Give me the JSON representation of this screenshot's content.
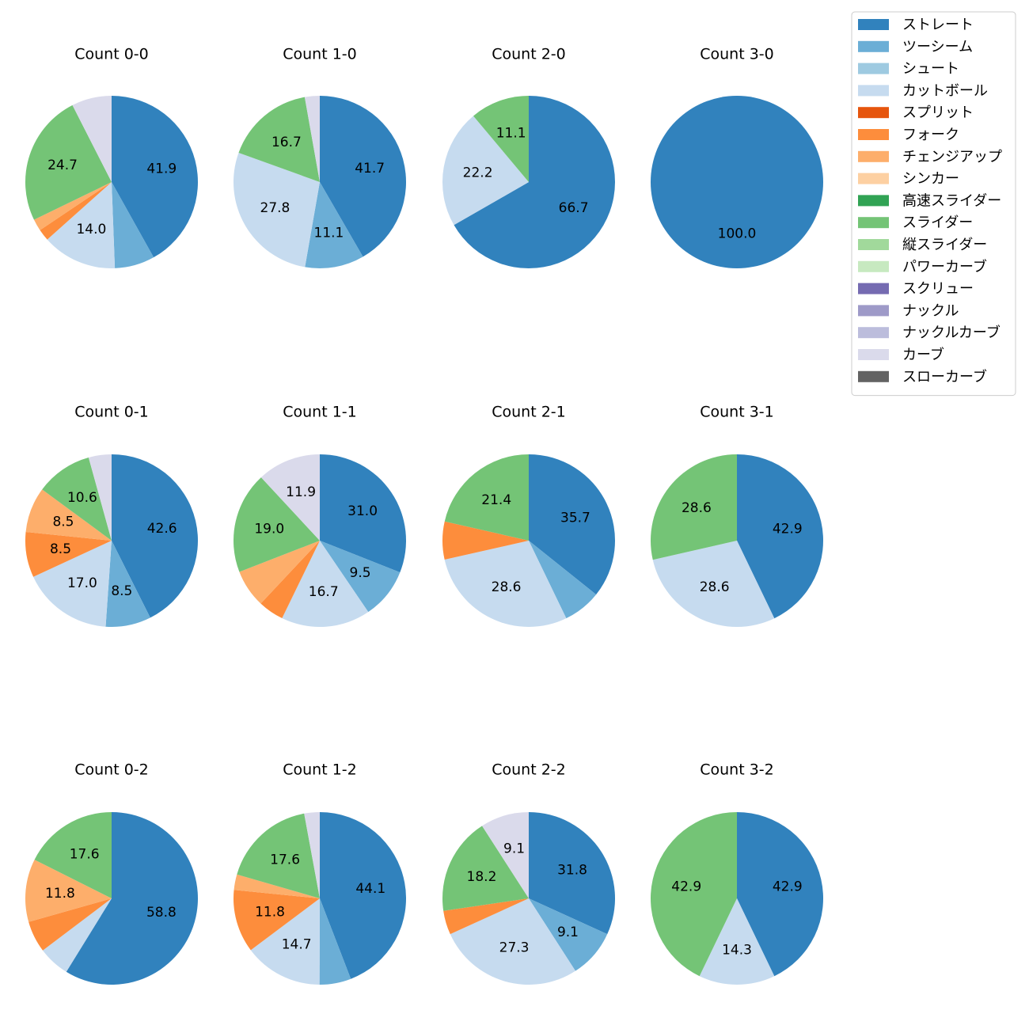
{
  "chart_data": {
    "type": "pie",
    "start": "top, clockwise",
    "legend_position": "top-right",
    "categories": [
      {
        "name": "ストレート",
        "color": "#3182bd"
      },
      {
        "name": "ツーシーム",
        "color": "#6baed6"
      },
      {
        "name": "シュート",
        "color": "#9ecae1"
      },
      {
        "name": "カットボール",
        "color": "#c6dbef"
      },
      {
        "name": "スプリット",
        "color": "#e6550d"
      },
      {
        "name": "フォーク",
        "color": "#fd8d3c"
      },
      {
        "name": "チェンジアップ",
        "color": "#fdae6b"
      },
      {
        "name": "シンカー",
        "color": "#fdd0a2"
      },
      {
        "name": "高速スライダー",
        "color": "#31a354"
      },
      {
        "name": "スライダー",
        "color": "#74c476"
      },
      {
        "name": "縦スライダー",
        "color": "#a1d99b"
      },
      {
        "name": "パワーカーブ",
        "color": "#c7e9c0"
      },
      {
        "name": "スクリュー",
        "color": "#756bb1"
      },
      {
        "name": "ナックル",
        "color": "#9e9ac8"
      },
      {
        "name": "ナックルカーブ",
        "color": "#bcbddc"
      },
      {
        "name": "カーブ",
        "color": "#dadaeb"
      },
      {
        "name": "スローカーブ",
        "color": "#636363"
      }
    ],
    "pies": [
      {
        "title": "Count 0-0",
        "slices": [
          {
            "category": "ストレート",
            "value": 41.9,
            "label": "41.9"
          },
          {
            "category": "ツーシーム",
            "value": 7.5,
            "label": ""
          },
          {
            "category": "カットボール",
            "value": 14.0,
            "label": "14.0"
          },
          {
            "category": "フォーク",
            "value": 2.2,
            "label": ""
          },
          {
            "category": "チェンジアップ",
            "value": 2.2,
            "label": ""
          },
          {
            "category": "スライダー",
            "value": 24.7,
            "label": "24.7"
          },
          {
            "category": "カーブ",
            "value": 7.5,
            "label": ""
          }
        ]
      },
      {
        "title": "Count 1-0",
        "slices": [
          {
            "category": "ストレート",
            "value": 41.7,
            "label": "41.7"
          },
          {
            "category": "ツーシーム",
            "value": 11.1,
            "label": "11.1"
          },
          {
            "category": "カットボール",
            "value": 27.8,
            "label": "27.8"
          },
          {
            "category": "スライダー",
            "value": 16.7,
            "label": "16.7"
          },
          {
            "category": "カーブ",
            "value": 2.8,
            "label": ""
          }
        ]
      },
      {
        "title": "Count 2-0",
        "slices": [
          {
            "category": "ストレート",
            "value": 66.7,
            "label": "66.7"
          },
          {
            "category": "カットボール",
            "value": 22.2,
            "label": "22.2"
          },
          {
            "category": "スライダー",
            "value": 11.1,
            "label": "11.1"
          }
        ]
      },
      {
        "title": "Count 3-0",
        "slices": [
          {
            "category": "ストレート",
            "value": 100.0,
            "label": "100.0"
          }
        ]
      },
      {
        "title": "Count 0-1",
        "slices": [
          {
            "category": "ストレート",
            "value": 42.6,
            "label": "42.6"
          },
          {
            "category": "ツーシーム",
            "value": 8.5,
            "label": "8.5"
          },
          {
            "category": "カットボール",
            "value": 17.0,
            "label": "17.0"
          },
          {
            "category": "フォーク",
            "value": 8.5,
            "label": "8.5"
          },
          {
            "category": "チェンジアップ",
            "value": 8.5,
            "label": "8.5"
          },
          {
            "category": "スライダー",
            "value": 10.6,
            "label": "10.6"
          },
          {
            "category": "カーブ",
            "value": 4.3,
            "label": ""
          }
        ]
      },
      {
        "title": "Count 1-1",
        "slices": [
          {
            "category": "ストレート",
            "value": 31.0,
            "label": "31.0"
          },
          {
            "category": "ツーシーム",
            "value": 9.5,
            "label": "9.5"
          },
          {
            "category": "カットボール",
            "value": 16.7,
            "label": "16.7"
          },
          {
            "category": "フォーク",
            "value": 4.8,
            "label": ""
          },
          {
            "category": "チェンジアップ",
            "value": 7.1,
            "label": ""
          },
          {
            "category": "スライダー",
            "value": 19.0,
            "label": "19.0"
          },
          {
            "category": "カーブ",
            "value": 11.9,
            "label": "11.9"
          }
        ]
      },
      {
        "title": "Count 2-1",
        "slices": [
          {
            "category": "ストレート",
            "value": 35.7,
            "label": "35.7"
          },
          {
            "category": "ツーシーム",
            "value": 7.1,
            "label": ""
          },
          {
            "category": "カットボール",
            "value": 28.6,
            "label": "28.6"
          },
          {
            "category": "フォーク",
            "value": 7.1,
            "label": ""
          },
          {
            "category": "スライダー",
            "value": 21.4,
            "label": "21.4"
          }
        ]
      },
      {
        "title": "Count 3-1",
        "slices": [
          {
            "category": "ストレート",
            "value": 42.9,
            "label": "42.9"
          },
          {
            "category": "カットボール",
            "value": 28.6,
            "label": "28.6"
          },
          {
            "category": "スライダー",
            "value": 28.6,
            "label": "28.6"
          }
        ]
      },
      {
        "title": "Count 0-2",
        "slices": [
          {
            "category": "ストレート",
            "value": 58.8,
            "label": "58.8"
          },
          {
            "category": "カットボール",
            "value": 5.9,
            "label": ""
          },
          {
            "category": "フォーク",
            "value": 5.9,
            "label": ""
          },
          {
            "category": "チェンジアップ",
            "value": 11.8,
            "label": "11.8"
          },
          {
            "category": "スライダー",
            "value": 17.6,
            "label": "17.6"
          }
        ]
      },
      {
        "title": "Count 1-2",
        "slices": [
          {
            "category": "ストレート",
            "value": 44.1,
            "label": "44.1"
          },
          {
            "category": "ツーシーム",
            "value": 5.9,
            "label": ""
          },
          {
            "category": "カットボール",
            "value": 14.7,
            "label": "14.7"
          },
          {
            "category": "フォーク",
            "value": 11.8,
            "label": "11.8"
          },
          {
            "category": "チェンジアップ",
            "value": 2.9,
            "label": ""
          },
          {
            "category": "スライダー",
            "value": 17.6,
            "label": "17.6"
          },
          {
            "category": "カーブ",
            "value": 2.9,
            "label": ""
          }
        ]
      },
      {
        "title": "Count 2-2",
        "slices": [
          {
            "category": "ストレート",
            "value": 31.8,
            "label": "31.8"
          },
          {
            "category": "ツーシーム",
            "value": 9.1,
            "label": "9.1"
          },
          {
            "category": "カットボール",
            "value": 27.3,
            "label": "27.3"
          },
          {
            "category": "フォーク",
            "value": 4.5,
            "label": ""
          },
          {
            "category": "スライダー",
            "value": 18.2,
            "label": "18.2"
          },
          {
            "category": "カーブ",
            "value": 9.1,
            "label": "9.1"
          }
        ]
      },
      {
        "title": "Count 3-2",
        "slices": [
          {
            "category": "ストレート",
            "value": 42.9,
            "label": "42.9"
          },
          {
            "category": "カットボール",
            "value": 14.3,
            "label": "14.3"
          },
          {
            "category": "スライダー",
            "value": 42.9,
            "label": "42.9"
          }
        ]
      }
    ]
  }
}
